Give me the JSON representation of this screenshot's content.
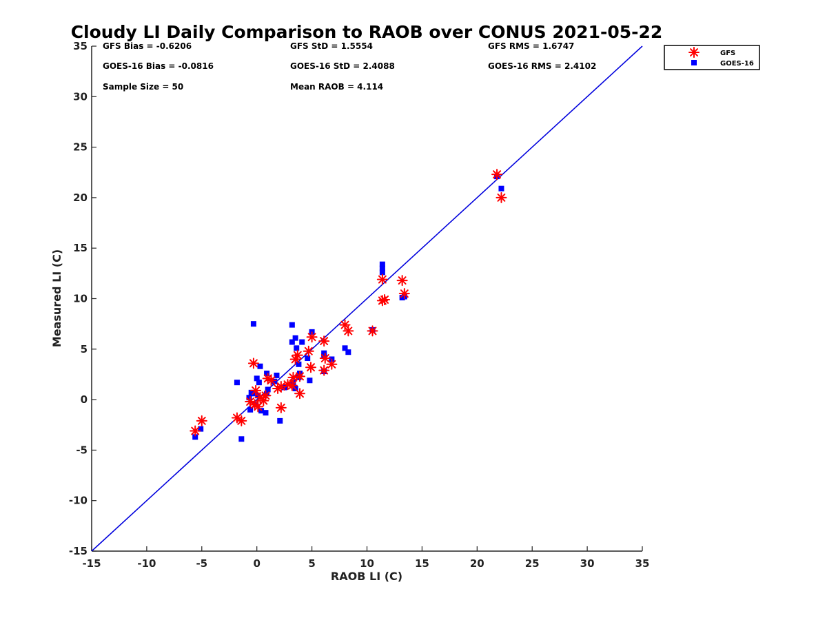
{
  "chart_data": {
    "type": "scatter",
    "title": "Cloudy LI Daily Comparison to RAOB over CONUS 2021-05-22",
    "xlabel": "RAOB LI (C)",
    "ylabel": "Measured LI (C)",
    "xlim": [
      -15,
      35
    ],
    "ylim": [
      -15,
      35
    ],
    "xticks": [
      "-15",
      "-10",
      "-5",
      "0",
      "5",
      "10",
      "15",
      "20",
      "25",
      "30",
      "35"
    ],
    "yticks": [
      "-15",
      "-10",
      "-5",
      "0",
      "5",
      "10",
      "15",
      "20",
      "25",
      "30",
      "35"
    ],
    "grid": false,
    "legend_position": "top-right outside",
    "reference_line": {
      "from": [
        -15,
        -15
      ],
      "to": [
        35,
        35
      ],
      "color": "#0000dd"
    },
    "stats": [
      [
        "GFS Bias = -0.6206",
        "GFS StD = 1.5554",
        "GFS RMS = 1.6747"
      ],
      [
        "GOES-16 Bias = -0.0816",
        "GOES-16 StD = 2.4088",
        "GOES-16 RMS = 2.4102"
      ],
      [
        "Sample Size = 50",
        "Mean RAOB = 4.114",
        ""
      ]
    ],
    "series": [
      {
        "name": "GFS",
        "marker": "asterisk",
        "color": "#ff0000",
        "points": [
          [
            21.8,
            22.3
          ],
          [
            22.2,
            20.0
          ],
          [
            11.4,
            11.9
          ],
          [
            11.4,
            9.8
          ],
          [
            11.6,
            9.9
          ],
          [
            13.2,
            11.8
          ],
          [
            13.4,
            10.5
          ],
          [
            10.5,
            6.8
          ],
          [
            8.0,
            7.4
          ],
          [
            8.3,
            6.8
          ],
          [
            6.1,
            5.8
          ],
          [
            6.2,
            4.1
          ],
          [
            6.1,
            2.9
          ],
          [
            6.8,
            3.5
          ],
          [
            5.0,
            6.2
          ],
          [
            4.7,
            4.8
          ],
          [
            4.9,
            3.2
          ],
          [
            3.5,
            4.0
          ],
          [
            3.7,
            4.4
          ],
          [
            3.9,
            2.3
          ],
          [
            3.3,
            2.2
          ],
          [
            3.9,
            0.6
          ],
          [
            3.2,
            1.4
          ],
          [
            2.8,
            1.5
          ],
          [
            2.2,
            1.3
          ],
          [
            1.9,
            1.1
          ],
          [
            2.2,
            -0.8
          ],
          [
            1.3,
            1.9
          ],
          [
            1.0,
            2.1
          ],
          [
            0.8,
            0.4
          ],
          [
            0.6,
            -0.1
          ],
          [
            0.3,
            0.2
          ],
          [
            -0.1,
            0.9
          ],
          [
            -0.3,
            3.6
          ],
          [
            -0.2,
            -0.5
          ],
          [
            -0.6,
            -0.2
          ],
          [
            0.1,
            -0.7
          ],
          [
            -1.4,
            -2.1
          ],
          [
            -1.8,
            -1.8
          ],
          [
            -5.0,
            -2.1
          ],
          [
            -5.6,
            -3.1
          ]
        ]
      },
      {
        "name": "GOES-16",
        "marker": "square",
        "color": "#0000ff",
        "points": [
          [
            21.8,
            22.1
          ],
          [
            22.2,
            20.9
          ],
          [
            11.4,
            13.4
          ],
          [
            11.4,
            13.0
          ],
          [
            11.4,
            12.6
          ],
          [
            13.2,
            10.1
          ],
          [
            13.4,
            10.2
          ],
          [
            10.5,
            6.9
          ],
          [
            8.0,
            5.1
          ],
          [
            8.3,
            4.7
          ],
          [
            6.1,
            4.6
          ],
          [
            6.1,
            4.3
          ],
          [
            6.1,
            2.8
          ],
          [
            6.8,
            4.0
          ],
          [
            5.0,
            6.7
          ],
          [
            4.1,
            5.7
          ],
          [
            4.6,
            4.1
          ],
          [
            4.8,
            1.9
          ],
          [
            3.2,
            7.4
          ],
          [
            3.2,
            5.7
          ],
          [
            3.5,
            6.1
          ],
          [
            3.6,
            5.1
          ],
          [
            3.8,
            3.5
          ],
          [
            3.9,
            2.6
          ],
          [
            3.8,
            2.2
          ],
          [
            3.3,
            1.7
          ],
          [
            3.5,
            1.1
          ],
          [
            2.5,
            1.2
          ],
          [
            1.8,
            2.4
          ],
          [
            1.6,
            1.8
          ],
          [
            0.9,
            2.6
          ],
          [
            1.0,
            1.0
          ],
          [
            0.9,
            0.6
          ],
          [
            0.8,
            -1.3
          ],
          [
            0.3,
            3.3
          ],
          [
            0.2,
            1.7
          ],
          [
            0.0,
            2.1
          ],
          [
            -0.3,
            7.5
          ],
          [
            -0.2,
            0.6
          ],
          [
            0.1,
            0.4
          ],
          [
            -0.5,
            0.7
          ],
          [
            -0.7,
            0.2
          ],
          [
            -0.6,
            -1.0
          ],
          [
            -0.1,
            -0.5
          ],
          [
            0.4,
            -1.1
          ],
          [
            2.1,
            -2.1
          ],
          [
            -1.4,
            -3.9
          ],
          [
            -1.8,
            1.7
          ],
          [
            -5.1,
            -2.9
          ],
          [
            -5.6,
            -3.7
          ]
        ]
      }
    ]
  }
}
